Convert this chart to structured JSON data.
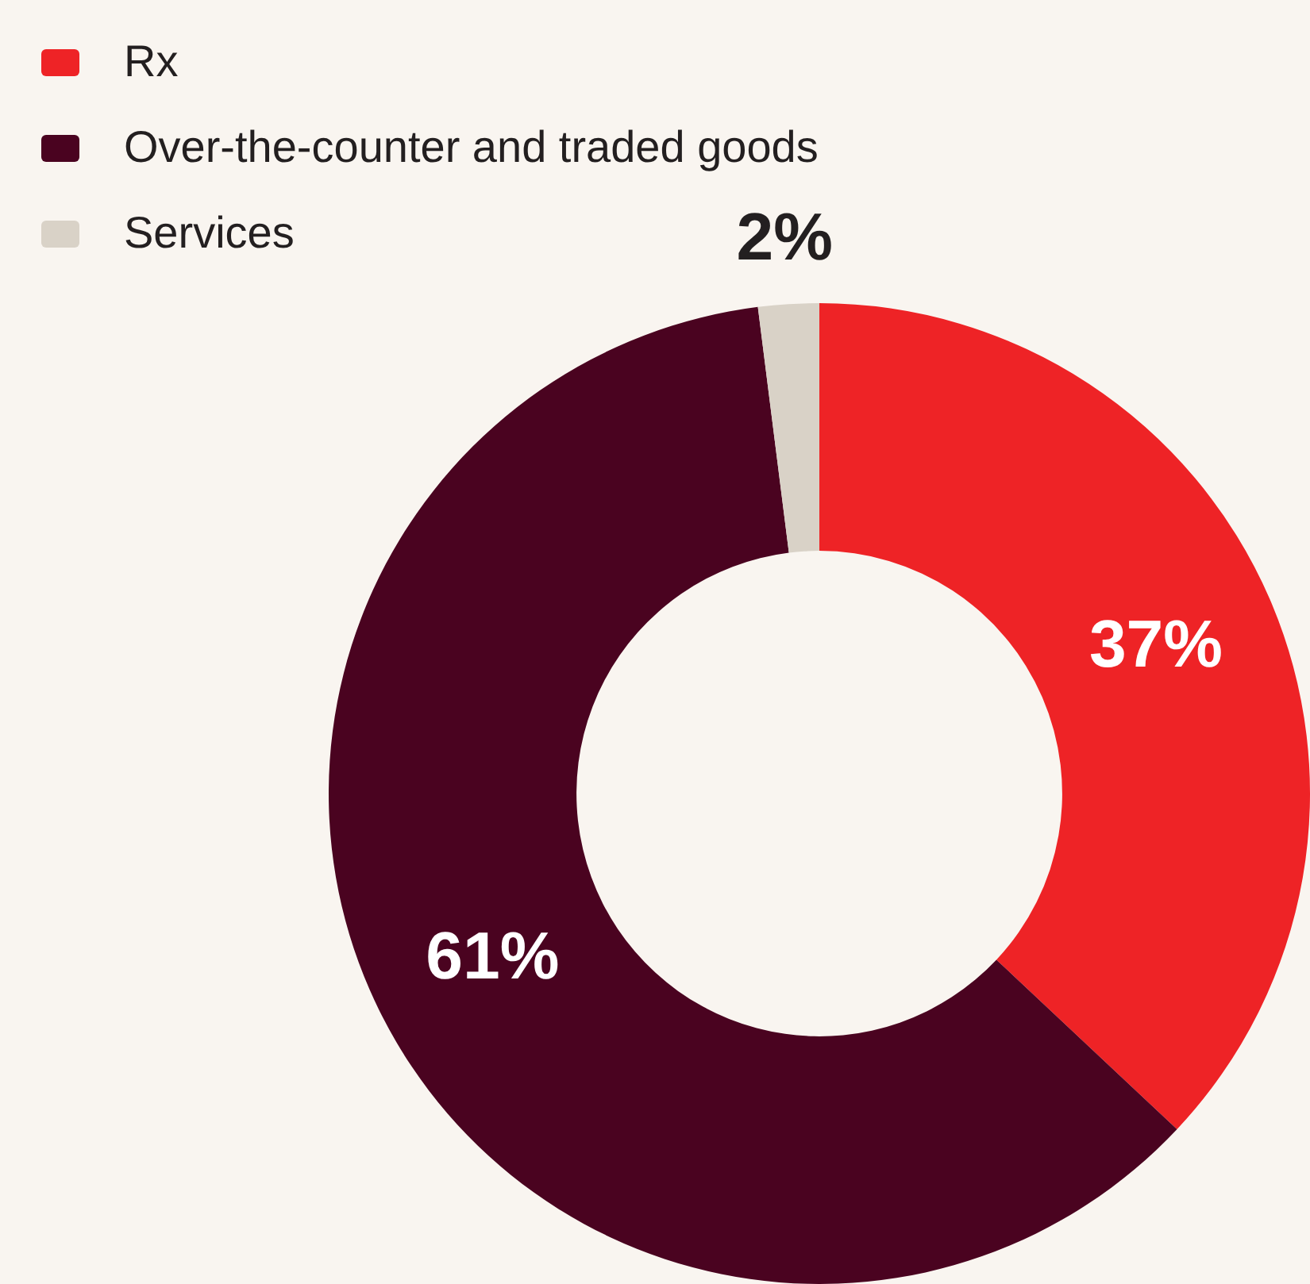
{
  "chart_data": {
    "type": "donut",
    "categories": [
      "Rx",
      "Over-the-counter and traded goods",
      "Services"
    ],
    "values": [
      37,
      61,
      2
    ],
    "colors": [
      "#ee2326",
      "#4a0320",
      "#d9d2c7"
    ],
    "value_labels": [
      "37%",
      "61%",
      "2%"
    ],
    "legend": "top left"
  }
}
